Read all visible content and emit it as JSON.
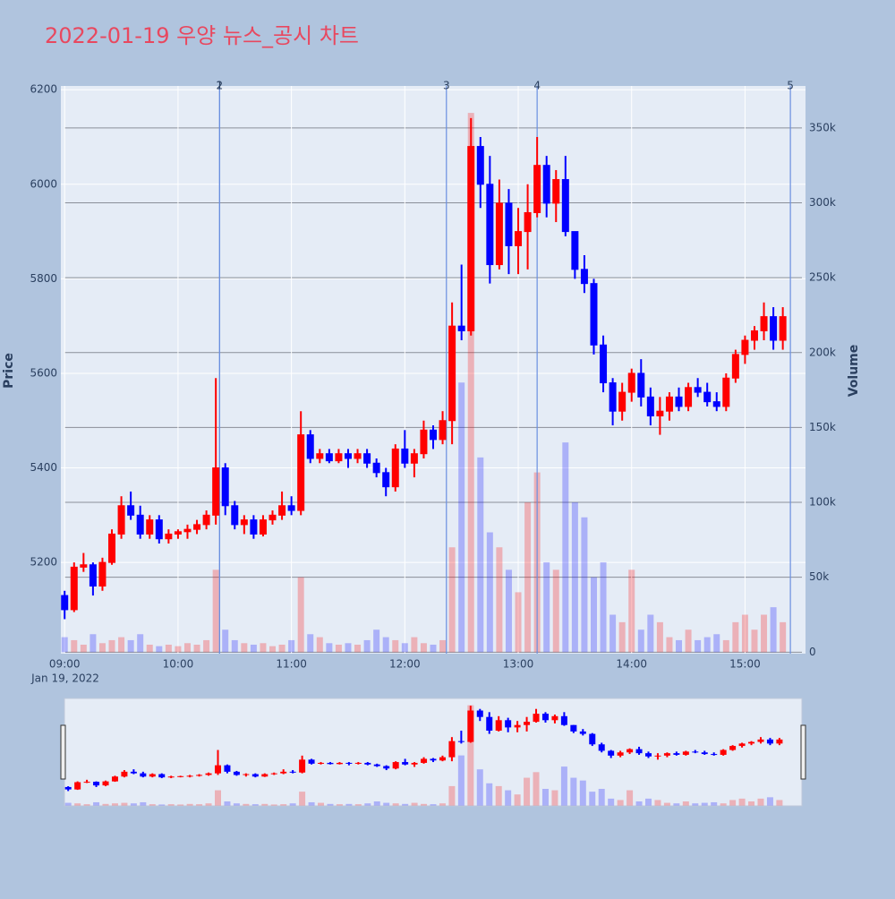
{
  "chart_data": {
    "type": "candlestick",
    "title": "2022-01-19 우양 뉴스_공시 차트",
    "x_date_label": "Jan 19, 2022",
    "y_title": "Price",
    "y2_title": "Volume",
    "increasing_color": "#ff0000",
    "decreasing_color": "#0000ff",
    "grid": true,
    "xlim": [
      "2022-01-19 08:58",
      "2022-01-19 15:32"
    ],
    "xticks": [
      {
        "value": "2022-01-19 09:00",
        "label": "09:00"
      },
      {
        "value": "2022-01-19 10:00",
        "label": "10:00"
      },
      {
        "value": "2022-01-19 11:00",
        "label": "11:00"
      },
      {
        "value": "2022-01-19 12:00",
        "label": "12:00"
      },
      {
        "value": "2022-01-19 13:00",
        "label": "13:00"
      },
      {
        "value": "2022-01-19 14:00",
        "label": "14:00"
      },
      {
        "value": "2022-01-19 15:00",
        "label": "15:00"
      }
    ],
    "ylim": [
      5007,
      6208
    ],
    "yticks": [
      5200,
      5400,
      5600,
      5800,
      6000,
      6200
    ],
    "y2lim": [
      -1000,
      378000
    ],
    "y2ticks": [
      0,
      {
        "value": 50000,
        "label": "50k"
      },
      {
        "value": 100000,
        "label": "100k"
      },
      {
        "value": 150000,
        "label": "150k"
      },
      {
        "value": 200000,
        "label": "200k"
      },
      {
        "value": 250000,
        "label": "250k"
      },
      {
        "value": 300000,
        "label": "300k"
      },
      {
        "value": 350000,
        "label": "350k"
      }
    ],
    "news": [
      {
        "label": "1",
        "x": "2022-01-19 10:22"
      },
      {
        "label": "2",
        "x": "2022-01-19 10:22"
      },
      {
        "label": "3",
        "x": "2022-01-19 12:22"
      },
      {
        "label": "4",
        "x": "2022-01-19 13:10"
      },
      {
        "label": "5",
        "x": "2022-01-19 15:24"
      }
    ],
    "x": [
      "2022-01-19 09:00",
      "2022-01-19 09:05",
      "2022-01-19 09:10",
      "2022-01-19 09:15",
      "2022-01-19 09:20",
      "2022-01-19 09:25",
      "2022-01-19 09:30",
      "2022-01-19 09:35",
      "2022-01-19 09:40",
      "2022-01-19 09:45",
      "2022-01-19 09:50",
      "2022-01-19 09:55",
      "2022-01-19 10:00",
      "2022-01-19 10:05",
      "2022-01-19 10:10",
      "2022-01-19 10:15",
      "2022-01-19 10:20",
      "2022-01-19 10:25",
      "2022-01-19 10:30",
      "2022-01-19 10:35",
      "2022-01-19 10:40",
      "2022-01-19 10:45",
      "2022-01-19 10:50",
      "2022-01-19 10:55",
      "2022-01-19 11:00",
      "2022-01-19 11:05",
      "2022-01-19 11:10",
      "2022-01-19 11:15",
      "2022-01-19 11:20",
      "2022-01-19 11:25",
      "2022-01-19 11:30",
      "2022-01-19 11:35",
      "2022-01-19 11:40",
      "2022-01-19 11:45",
      "2022-01-19 11:50",
      "2022-01-19 11:55",
      "2022-01-19 12:00",
      "2022-01-19 12:05",
      "2022-01-19 12:10",
      "2022-01-19 12:15",
      "2022-01-19 12:20",
      "2022-01-19 12:25",
      "2022-01-19 12:30",
      "2022-01-19 12:35",
      "2022-01-19 12:40",
      "2022-01-19 12:45",
      "2022-01-19 12:50",
      "2022-01-19 12:55",
      "2022-01-19 13:00",
      "2022-01-19 13:05",
      "2022-01-19 13:10",
      "2022-01-19 13:15",
      "2022-01-19 13:20",
      "2022-01-19 13:25",
      "2022-01-19 13:30",
      "2022-01-19 13:35",
      "2022-01-19 13:40",
      "2022-01-19 13:45",
      "2022-01-19 13:50",
      "2022-01-19 13:55",
      "2022-01-19 14:00",
      "2022-01-19 14:05",
      "2022-01-19 14:10",
      "2022-01-19 14:15",
      "2022-01-19 14:20",
      "2022-01-19 14:25",
      "2022-01-19 14:30",
      "2022-01-19 14:35",
      "2022-01-19 14:40",
      "2022-01-19 14:45",
      "2022-01-19 14:50",
      "2022-01-19 14:55",
      "2022-01-19 15:00",
      "2022-01-19 15:05",
      "2022-01-19 15:10",
      "2022-01-19 15:15",
      "2022-01-19 15:20"
    ],
    "open": [
      5130,
      5100,
      5190,
      5195,
      5150,
      5200,
      5260,
      5320,
      5300,
      5260,
      5290,
      5250,
      5260,
      5265,
      5270,
      5280,
      5300,
      5400,
      5320,
      5280,
      5290,
      5260,
      5290,
      5300,
      5320,
      5310,
      5470,
      5420,
      5430,
      5415,
      5430,
      5420,
      5430,
      5410,
      5390,
      5360,
      5440,
      5410,
      5430,
      5480,
      5460,
      5500,
      5700,
      5690,
      6080,
      6000,
      5830,
      5960,
      5870,
      5900,
      5940,
      6040,
      5960,
      6010,
      5900,
      5820,
      5790,
      5660,
      5580,
      5520,
      5560,
      5600,
      5550,
      5510,
      5520,
      5550,
      5530,
      5570,
      5560,
      5540,
      5530,
      5590,
      5640,
      5670,
      5690,
      5720,
      5670
    ],
    "high": [
      5140,
      5200,
      5220,
      5200,
      5210,
      5270,
      5340,
      5350,
      5320,
      5300,
      5300,
      5270,
      5270,
      5280,
      5290,
      5310,
      5590,
      5410,
      5330,
      5300,
      5300,
      5300,
      5310,
      5350,
      5340,
      5520,
      5480,
      5440,
      5440,
      5440,
      5440,
      5440,
      5440,
      5420,
      5400,
      5450,
      5480,
      5440,
      5500,
      5490,
      5520,
      5750,
      5830,
      6140,
      6100,
      6060,
      6010,
      5990,
      5950,
      6000,
      6100,
      6060,
      6030,
      6060,
      5900,
      5850,
      5800,
      5680,
      5590,
      5580,
      5610,
      5630,
      5570,
      5550,
      5560,
      5570,
      5580,
      5590,
      5580,
      5560,
      5600,
      5650,
      5680,
      5700,
      5750,
      5740,
      5740
    ],
    "low": [
      5080,
      5095,
      5180,
      5130,
      5140,
      5195,
      5250,
      5290,
      5250,
      5250,
      5240,
      5240,
      5250,
      5250,
      5260,
      5270,
      5280,
      5300,
      5270,
      5260,
      5250,
      5255,
      5280,
      5290,
      5300,
      5300,
      5410,
      5410,
      5410,
      5410,
      5400,
      5410,
      5400,
      5380,
      5340,
      5350,
      5400,
      5380,
      5420,
      5440,
      5450,
      5450,
      5670,
      5680,
      5950,
      5790,
      5820,
      5810,
      5810,
      5820,
      5930,
      5930,
      5920,
      5890,
      5800,
      5770,
      5640,
      5560,
      5490,
      5500,
      5540,
      5530,
      5490,
      5470,
      5500,
      5520,
      5520,
      5550,
      5530,
      5520,
      5520,
      5580,
      5620,
      5650,
      5670,
      5650,
      5650
    ],
    "close": [
      5100,
      5190,
      5195,
      5150,
      5200,
      5260,
      5320,
      5300,
      5260,
      5290,
      5250,
      5260,
      5265,
      5270,
      5280,
      5300,
      5400,
      5320,
      5280,
      5290,
      5260,
      5290,
      5300,
      5320,
      5310,
      5470,
      5420,
      5430,
      5415,
      5430,
      5420,
      5430,
      5410,
      5390,
      5360,
      5440,
      5410,
      5430,
      5480,
      5460,
      5500,
      5700,
      5690,
      6080,
      6000,
      5830,
      5960,
      5870,
      5900,
      5940,
      6040,
      5960,
      6010,
      5900,
      5820,
      5790,
      5660,
      5580,
      5520,
      5560,
      5600,
      5550,
      5510,
      5520,
      5550,
      5530,
      5570,
      5560,
      5540,
      5530,
      5590,
      5640,
      5670,
      5690,
      5720,
      5670,
      5720
    ],
    "volume": [
      10000,
      8000,
      5000,
      12000,
      6000,
      8000,
      10000,
      8000,
      12000,
      5000,
      4000,
      5000,
      4000,
      6000,
      5000,
      8000,
      55000,
      15000,
      8000,
      6000,
      5000,
      6000,
      4000,
      5000,
      8000,
      50000,
      12000,
      10000,
      6000,
      5000,
      6000,
      5000,
      8000,
      15000,
      10000,
      8000,
      6000,
      10000,
      6000,
      5000,
      8000,
      70000,
      180000,
      360000,
      130000,
      80000,
      70000,
      55000,
      40000,
      100000,
      120000,
      60000,
      55000,
      140000,
      100000,
      90000,
      50000,
      60000,
      25000,
      20000,
      55000,
      15000,
      25000,
      20000,
      10000,
      8000,
      15000,
      8000,
      10000,
      12000,
      8000,
      20000,
      25000,
      15000,
      25000,
      30000,
      20000
    ]
  }
}
